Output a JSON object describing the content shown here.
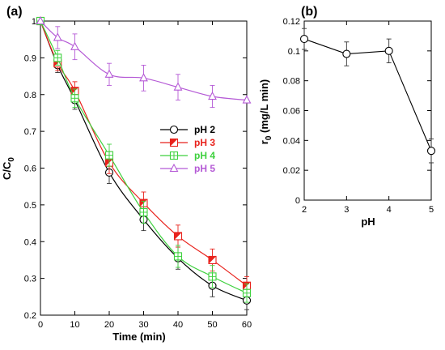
{
  "chart_data": [
    {
      "type": "line",
      "panel_label": "(a)",
      "xlabel": "Time (min)",
      "ylabel_main": "C/C",
      "ylabel_sub": "0",
      "xlim": [
        0,
        60
      ],
      "ylim": [
        0.2,
        1.0
      ],
      "xticks": [
        "0",
        "10",
        "20",
        "30",
        "40",
        "50",
        "60"
      ],
      "yticks": [
        "0.2",
        "0.3",
        "0.4",
        "0.5",
        "0.6",
        "0.7",
        "0.8",
        "0.9",
        "1"
      ],
      "legend_position": "center-right",
      "x": [
        0,
        5,
        10,
        20,
        30,
        40,
        50,
        60
      ],
      "series": [
        {
          "name": "pH 2",
          "color": "#000000",
          "marker": "circle",
          "values": [
            1.0,
            0.88,
            0.785,
            0.588,
            0.46,
            0.355,
            0.28,
            0.24
          ],
          "errors": [
            0,
            0.02,
            0.025,
            0.03,
            0.03,
            0.03,
            0.03,
            0.025
          ]
        },
        {
          "name": "pH 3",
          "color": "#e8221c",
          "marker": "half-square",
          "values": [
            1.0,
            0.885,
            0.81,
            0.615,
            0.505,
            0.415,
            0.35,
            0.28
          ],
          "errors": [
            0,
            0.02,
            0.025,
            0.03,
            0.03,
            0.03,
            0.03,
            0.025
          ]
        },
        {
          "name": "pH 4",
          "color": "#3fd13f",
          "marker": "square-cross",
          "values": [
            1.0,
            0.9,
            0.79,
            0.635,
            0.48,
            0.36,
            0.305,
            0.26
          ],
          "errors": [
            0,
            0.02,
            0.025,
            0.03,
            0.03,
            0.03,
            0.03,
            0.025
          ]
        },
        {
          "name": "pH 5",
          "color": "#b55ad6",
          "marker": "triangle",
          "values": [
            1.0,
            0.955,
            0.93,
            0.855,
            0.845,
            0.82,
            0.795,
            0.785
          ],
          "errors": [
            0,
            0.03,
            0.035,
            0.03,
            0.035,
            0.035,
            0.03,
            0
          ]
        }
      ]
    },
    {
      "type": "line",
      "panel_label": "(b)",
      "xlabel": "pH",
      "ylabel_main": "r",
      "ylabel_sub": "0",
      "ylabel_rest": " (mg/L min)",
      "xlim": [
        2,
        5
      ],
      "ylim": [
        0,
        0.12
      ],
      "xticks": [
        "2",
        "3",
        "4",
        "5"
      ],
      "yticks": [
        "0",
        "0.02",
        "0.04",
        "0.06",
        "0.08",
        "0.1",
        "0.12"
      ],
      "x": [
        2,
        3,
        4,
        5
      ],
      "series": [
        {
          "color": "#000000",
          "marker": "circle",
          "values": [
            0.108,
            0.098,
            0.1,
            0.033
          ],
          "errors": [
            0.007,
            0.008,
            0.008,
            0.008
          ]
        }
      ]
    }
  ]
}
